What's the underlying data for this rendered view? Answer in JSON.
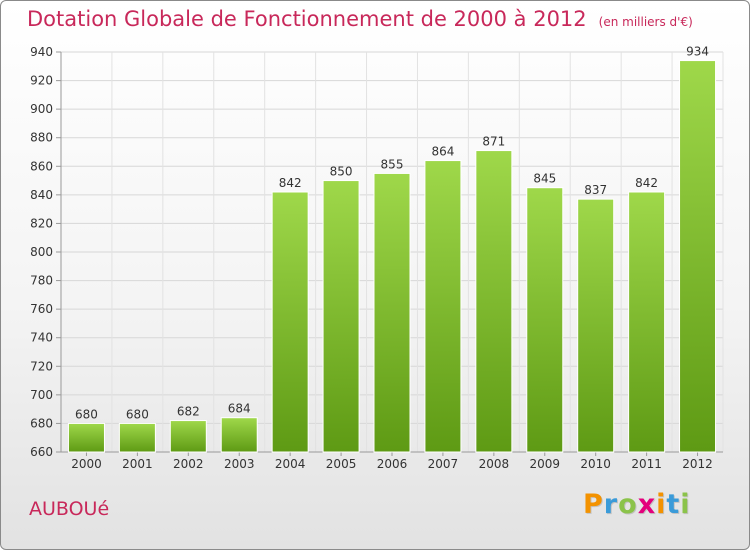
{
  "chart_data": {
    "type": "bar",
    "title": "Dotation Globale de Fonctionnement de 2000 à 2012",
    "unit": "(en milliers d'€)",
    "categories": [
      "2000",
      "2001",
      "2002",
      "2003",
      "2004",
      "2005",
      "2006",
      "2007",
      "2008",
      "2009",
      "2010",
      "2011",
      "2012"
    ],
    "values": [
      680,
      680,
      682,
      684,
      842,
      850,
      855,
      864,
      871,
      845,
      837,
      842,
      934
    ],
    "value_labels": [
      "680",
      "680",
      "682",
      "684",
      "842",
      "850",
      "855",
      "864",
      "871",
      "845",
      "837",
      "842",
      "934"
    ],
    "y_ticks": [
      "660",
      "680",
      "700",
      "720",
      "740",
      "760",
      "780",
      "800",
      "820",
      "840",
      "860",
      "880",
      "900",
      "920",
      "940"
    ],
    "ylim": [
      660,
      940
    ],
    "grid": true,
    "bar_color": "#7cb82f"
  },
  "commune": "AUBOUé",
  "logo": {
    "letters": [
      "P",
      "r",
      "o",
      "x",
      "i",
      "t",
      "i"
    ],
    "colors": [
      "#f39200",
      "#3a9bd9",
      "#8bc34a",
      "#e4007c",
      "#f39200",
      "#3a9bd9",
      "#8bc34a"
    ]
  }
}
